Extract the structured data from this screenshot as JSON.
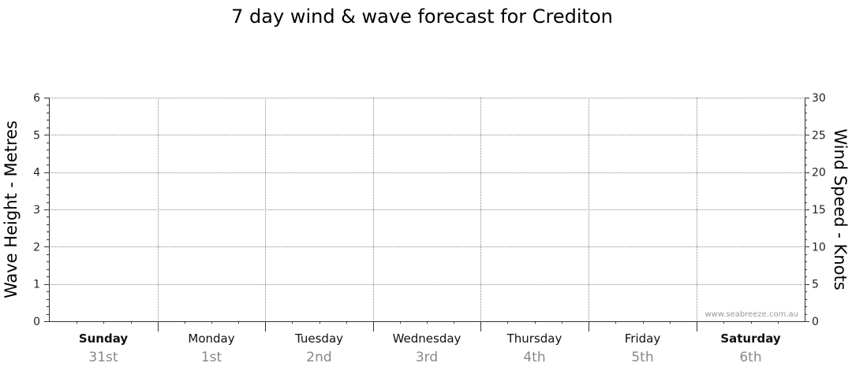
{
  "chart_data": {
    "type": "line",
    "title": "7 day wind & wave forecast for Crediton",
    "ylabel_left": "Wave Height - Metres",
    "ylabel_right": "Wind Speed - Knots",
    "ylim_left": [
      0,
      6
    ],
    "ylim_right": [
      0,
      30
    ],
    "left_ticks": [
      "0",
      "1",
      "2",
      "3",
      "4",
      "5",
      "6"
    ],
    "right_ticks": [
      "0",
      "5",
      "10",
      "15",
      "20",
      "25",
      "30"
    ],
    "grid": true,
    "days": [
      {
        "name": "Sunday",
        "date": "31st",
        "bold": true
      },
      {
        "name": "Monday",
        "date": "1st",
        "bold": false
      },
      {
        "name": "Tuesday",
        "date": "2nd",
        "bold": false
      },
      {
        "name": "Wednesday",
        "date": "3rd",
        "bold": false
      },
      {
        "name": "Thursday",
        "date": "4th",
        "bold": false
      },
      {
        "name": "Friday",
        "date": "5th",
        "bold": false
      },
      {
        "name": "Saturday",
        "date": "6th",
        "bold": true
      }
    ],
    "series": [],
    "watermark": "www.seabreeze.com.au"
  }
}
